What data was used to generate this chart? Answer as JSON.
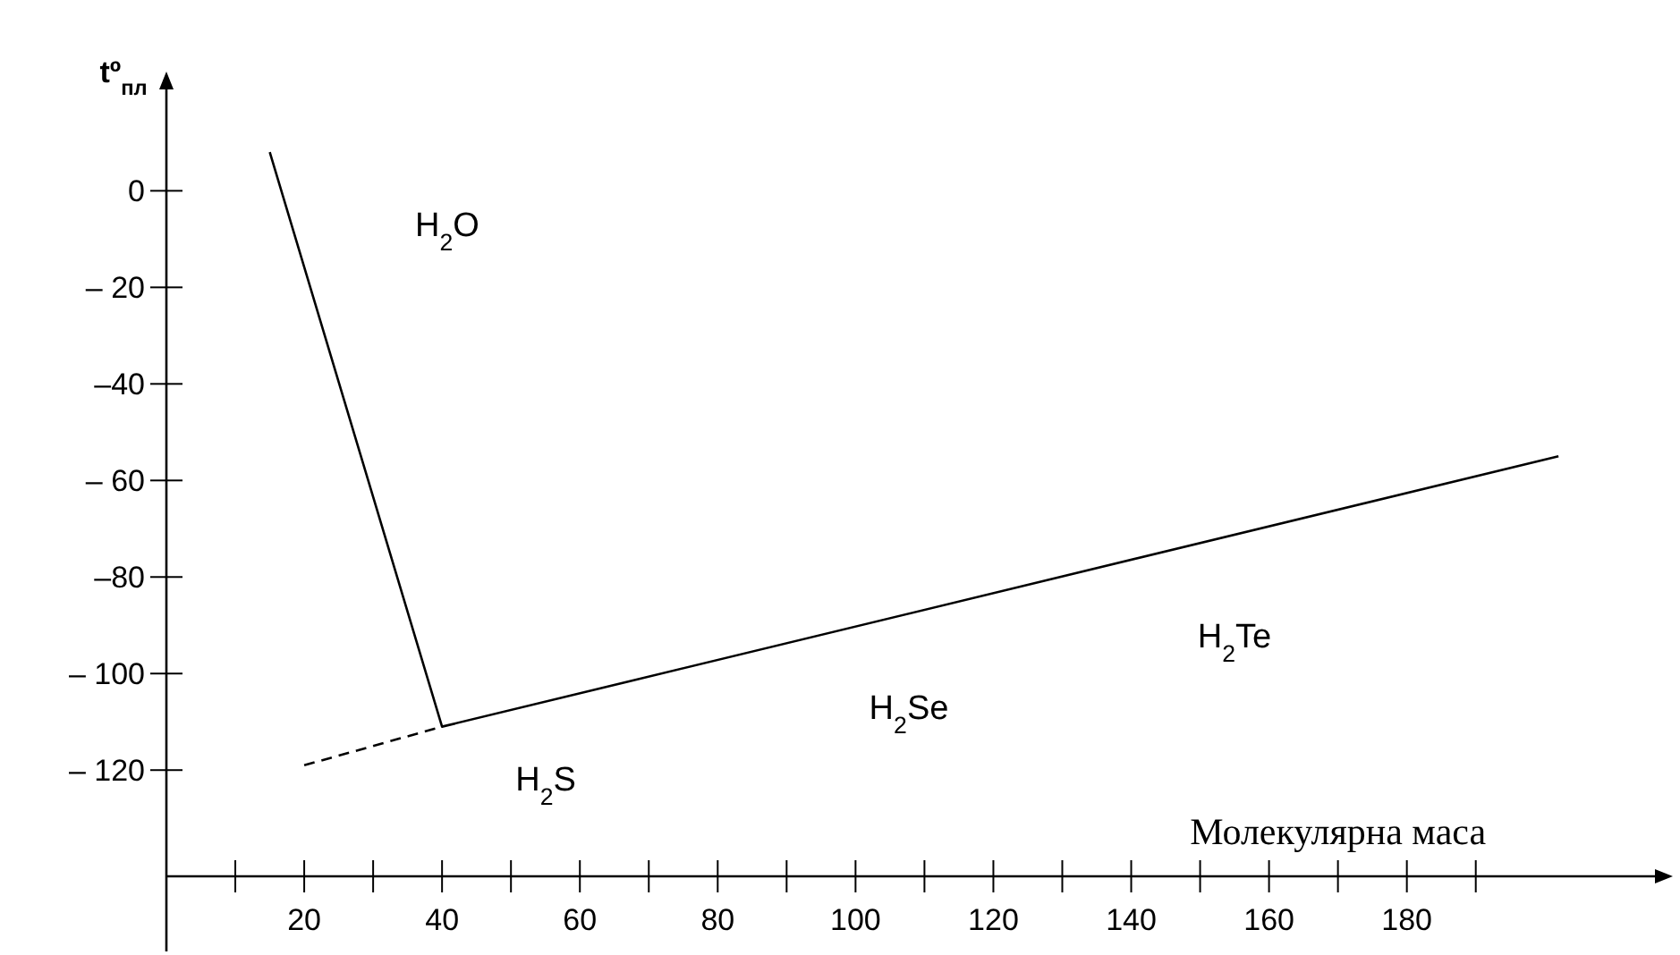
{
  "chart_data": {
    "type": "line",
    "xlabel": "Молекулярна маса",
    "ylabel": "tº$_{пл}$",
    "xlim": [
      0,
      216
    ],
    "ylim": [
      -142,
      21
    ],
    "xticks": [
      {
        "value": 10,
        "label": null
      },
      20,
      {
        "value": 30,
        "label": null
      },
      40,
      {
        "value": 50,
        "label": null
      },
      60,
      {
        "value": 70,
        "label": null
      },
      80,
      {
        "value": 90,
        "label": null
      },
      100,
      {
        "value": 110,
        "label": null
      },
      120,
      {
        "value": 130,
        "label": null
      },
      140,
      {
        "value": 150,
        "label": null
      },
      160,
      {
        "value": 170,
        "label": null
      },
      180,
      {
        "value": 190,
        "label": null
      }
    ],
    "yticks": [
      0,
      {
        "value": -20,
        "label": "– 20"
      },
      {
        "value": -40,
        "label": "–40"
      },
      {
        "value": -60,
        "label": "– 60"
      },
      {
        "value": -80,
        "label": "–80"
      },
      {
        "value": -100,
        "label": "– 100"
      },
      {
        "value": -120,
        "label": "– 120"
      }
    ],
    "series": [
      {
        "color": "#000000",
        "line_style": "solid",
        "x": [
          15,
          40,
          202
        ],
        "values": [
          8,
          -111,
          -55
        ]
      },
      {
        "color": "#000000",
        "line_style": "dashed",
        "x": [
          20,
          40
        ],
        "values": [
          -119,
          -111
        ]
      }
    ],
    "annotations": [
      "H$_{2}$O",
      "H$_{2}$S",
      "H$_{2}$Se",
      "H$_{2}$Te"
    ],
    "grid": false,
    "marker": "none"
  }
}
